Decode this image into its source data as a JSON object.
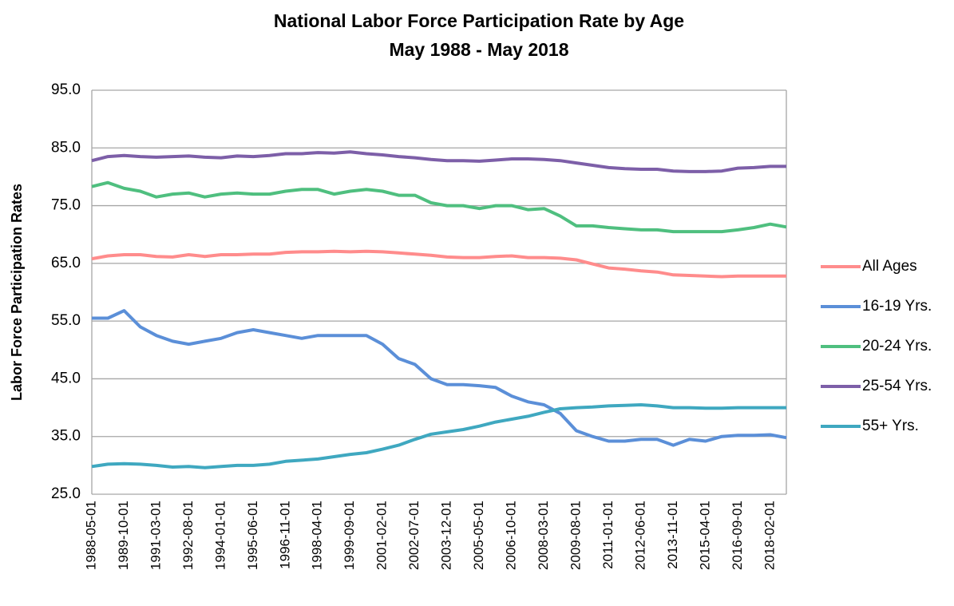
{
  "chart_data": {
    "type": "line",
    "title": "National Labor Force Participation Rate by Age",
    "subtitle": "May 1988 - May 2018",
    "y_label": "Labor Force Participation Rates",
    "categories": [
      "1988-05-01",
      null,
      "1989-10-01",
      null,
      "1991-03-01",
      null,
      "1992-08-01",
      null,
      "1994-01-01",
      null,
      "1995-06-01",
      null,
      "1996-11-01",
      null,
      "1998-04-01",
      null,
      "1999-09-01",
      null,
      "2001-02-01",
      null,
      "2002-07-01",
      null,
      "2003-12-01",
      null,
      "2005-05-01",
      null,
      "2006-10-01",
      null,
      "2008-03-01",
      null,
      "2009-08-01",
      null,
      "2011-01-01",
      null,
      "2012-06-01",
      null,
      "2013-11-01",
      null,
      "2015-04-01",
      null,
      "2016-09-01",
      null,
      "2018-02-01",
      null
    ],
    "series": [
      {
        "name": "All Ages",
        "color": "#ff8c8c",
        "values": [
          65.8,
          66.3,
          66.5,
          66.5,
          66.2,
          66.1,
          66.5,
          66.2,
          66.5,
          66.5,
          66.6,
          66.6,
          66.9,
          67.0,
          67.0,
          67.1,
          67.0,
          67.1,
          67.0,
          66.8,
          66.6,
          66.4,
          66.1,
          66.0,
          66.0,
          66.2,
          66.3,
          66.0,
          66.0,
          65.9,
          65.6,
          64.9,
          64.2,
          64.0,
          63.7,
          63.5,
          63.0,
          62.9,
          62.8,
          62.7,
          62.8,
          62.8,
          62.8,
          62.8
        ]
      },
      {
        "name": "16-19 Yrs.",
        "color": "#5b8fd8",
        "values": [
          55.5,
          55.5,
          56.8,
          54.0,
          52.5,
          51.5,
          51.0,
          51.5,
          52.0,
          53.0,
          53.5,
          53.0,
          52.5,
          52.0,
          52.5,
          52.5,
          52.5,
          52.5,
          51.0,
          48.5,
          47.5,
          45.0,
          44.0,
          44.0,
          43.8,
          43.5,
          42.0,
          41.0,
          40.5,
          39.0,
          36.0,
          35.0,
          34.2,
          34.2,
          34.5,
          34.5,
          33.5,
          34.5,
          34.2,
          35.0,
          35.2,
          35.2,
          35.3,
          34.8
        ]
      },
      {
        "name": "20-24 Yrs.",
        "color": "#4fbf7f",
        "values": [
          78.3,
          79.0,
          78.0,
          77.5,
          76.5,
          77.0,
          77.2,
          76.5,
          77.0,
          77.2,
          77.0,
          77.0,
          77.5,
          77.8,
          77.8,
          77.0,
          77.5,
          77.8,
          77.5,
          76.8,
          76.8,
          75.5,
          75.0,
          75.0,
          74.5,
          75.0,
          75.0,
          74.3,
          74.5,
          73.2,
          71.5,
          71.5,
          71.2,
          71.0,
          70.8,
          70.8,
          70.5,
          70.5,
          70.5,
          70.5,
          70.8,
          71.2,
          71.8,
          71.3
        ]
      },
      {
        "name": "25-54 Yrs.",
        "color": "#7d5fa8",
        "values": [
          82.8,
          83.5,
          83.7,
          83.5,
          83.4,
          83.5,
          83.6,
          83.4,
          83.3,
          83.6,
          83.5,
          83.7,
          84.0,
          84.0,
          84.2,
          84.1,
          84.3,
          84.0,
          83.8,
          83.5,
          83.3,
          83.0,
          82.8,
          82.8,
          82.7,
          82.9,
          83.1,
          83.1,
          83.0,
          82.8,
          82.4,
          82.0,
          81.6,
          81.4,
          81.3,
          81.3,
          81.0,
          80.9,
          80.9,
          81.0,
          81.5,
          81.6,
          81.8,
          81.8
        ]
      },
      {
        "name": "55+ Yrs.",
        "color": "#3fa8c0",
        "values": [
          29.8,
          30.2,
          30.3,
          30.2,
          30.0,
          29.7,
          29.8,
          29.6,
          29.8,
          30.0,
          30.0,
          30.2,
          30.7,
          30.9,
          31.1,
          31.5,
          31.9,
          32.2,
          32.8,
          33.5,
          34.5,
          35.4,
          35.8,
          36.2,
          36.8,
          37.5,
          38.0,
          38.5,
          39.2,
          39.8,
          40.0,
          40.1,
          40.3,
          40.4,
          40.5,
          40.3,
          40.0,
          40.0,
          39.9,
          39.9,
          40.0,
          40.0,
          40.0,
          40.0
        ]
      }
    ],
    "ylim": [
      25,
      95
    ],
    "yticks": [
      {
        "value": 25,
        "label": "25.0"
      },
      {
        "value": 35,
        "label": "35.0"
      },
      {
        "value": 45,
        "label": "45.0"
      },
      {
        "value": 55,
        "label": "55.0"
      },
      {
        "value": 65,
        "label": "65.0"
      },
      {
        "value": 75,
        "label": "75.0"
      },
      {
        "value": 85,
        "label": "85.0"
      },
      {
        "value": 95,
        "label": "95.0"
      }
    ],
    "grid": true,
    "legend": "right"
  }
}
